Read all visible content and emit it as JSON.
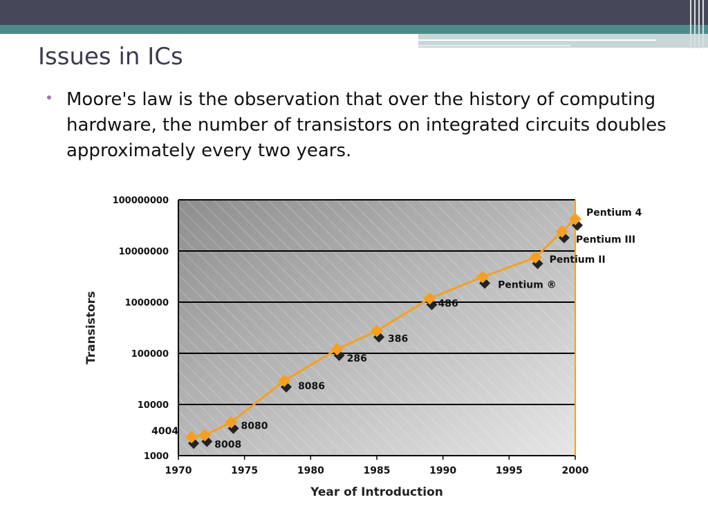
{
  "slide": {
    "title": "Issues in ICs",
    "bullet": "Moore's law is the observation that over the history of computing hardware, the number of transistors on integrated circuits doubles approximately every two years."
  },
  "chart_data": {
    "type": "line",
    "title": "",
    "xlabel": "Year of Introduction",
    "ylabel": "Transistors",
    "xlim": [
      1970,
      2000
    ],
    "ylim": [
      1000,
      100000000
    ],
    "yscale": "log",
    "grid": true,
    "xticks": [
      "1970",
      "1975",
      "1980",
      "1985",
      "1990",
      "1995",
      "2000"
    ],
    "yticks": [
      "1000",
      "10000",
      "100000",
      "1000000",
      "10000000",
      "100000000"
    ],
    "series_color": "#f5a020",
    "points": [
      {
        "year": 1971,
        "transistors": 2300,
        "label": "4004"
      },
      {
        "year": 1972,
        "transistors": 2500,
        "label": "8008"
      },
      {
        "year": 1974,
        "transistors": 4500,
        "label": "8080"
      },
      {
        "year": 1978,
        "transistors": 29000,
        "label": "8086"
      },
      {
        "year": 1982,
        "transistors": 120000,
        "label": "286"
      },
      {
        "year": 1985,
        "transistors": 275000,
        "label": "386"
      },
      {
        "year": 1989,
        "transistors": 1180000,
        "label": "486"
      },
      {
        "year": 1993,
        "transistors": 3100000,
        "label": "Pentium ®"
      },
      {
        "year": 1997,
        "transistors": 7500000,
        "label": "Pentium II"
      },
      {
        "year": 1999,
        "transistors": 24000000,
        "label": "Pentium III"
      },
      {
        "year": 2000,
        "transistors": 42000000,
        "label": "Pentium 4"
      }
    ]
  }
}
